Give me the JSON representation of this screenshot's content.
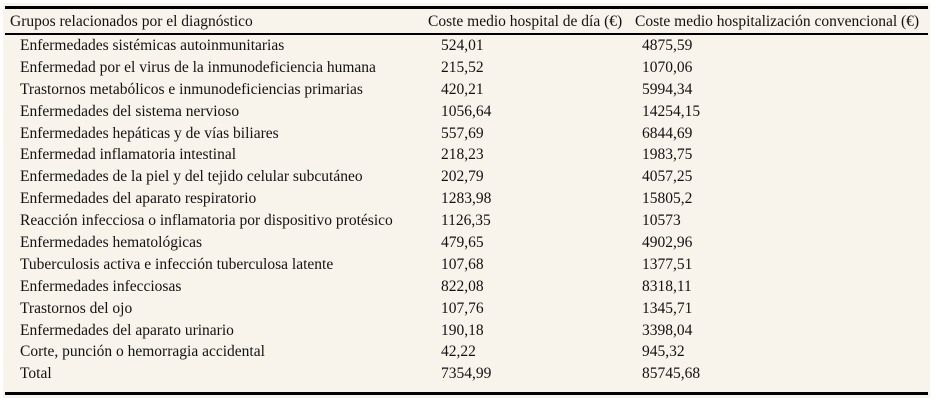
{
  "colors": {
    "background": "#f8f4ec",
    "rule": "#000000",
    "text": "#121212"
  },
  "table": {
    "columns": [
      "Grupos relacionados por el diagnóstico",
      "Coste medio hospital de día (€)",
      "Coste medio hospitalización convencional (€)"
    ],
    "rows": [
      {
        "label": "Enfermedades sistémicas autoinmunitarias",
        "day": "524,01",
        "conv": "4875,59"
      },
      {
        "label": "Enfermedad por el virus de la inmunodeficiencia humana",
        "day": "215,52",
        "conv": "1070,06"
      },
      {
        "label": "Trastornos metabólicos e inmunodeficiencias primarias",
        "day": "420,21",
        "conv": "5994,34"
      },
      {
        "label": "Enfermedades del sistema nervioso",
        "day": "1056,64",
        "conv": "14254,15"
      },
      {
        "label": "Enfermedades hepáticas y de vías biliares",
        "day": "557,69",
        "conv": "6844,69"
      },
      {
        "label": "Enfermedad inflamatoria intestinal",
        "day": "218,23",
        "conv": "1983,75"
      },
      {
        "label": "Enfermedades de la piel y del tejido celular subcutáneo",
        "day": "202,79",
        "conv": "4057,25"
      },
      {
        "label": "Enfermedades del aparato respiratorio",
        "day": "1283,98",
        "conv": "15805,2"
      },
      {
        "label": "Reacción infecciosa o inflamatoria por dispositivo protésico",
        "day": "1126,35",
        "conv": "10573"
      },
      {
        "label": "Enfermedades hematológicas",
        "day": "479,65",
        "conv": "4902,96"
      },
      {
        "label": "Tuberculosis activa e infección tuberculosa latente",
        "day": "107,68",
        "conv": "1377,51"
      },
      {
        "label": "Enfermedades infecciosas",
        "day": "822,08",
        "conv": "8318,11"
      },
      {
        "label": "Trastornos del ojo",
        "day": "107,76",
        "conv": "1345,71"
      },
      {
        "label": "Enfermedades del aparato urinario",
        "day": "190,18",
        "conv": "3398,04"
      },
      {
        "label": "Corte, punción o hemorragia accidental",
        "day": "42,22",
        "conv": "945,32"
      },
      {
        "label": "Total",
        "day": "7354,99",
        "conv": "85745,68"
      }
    ]
  }
}
